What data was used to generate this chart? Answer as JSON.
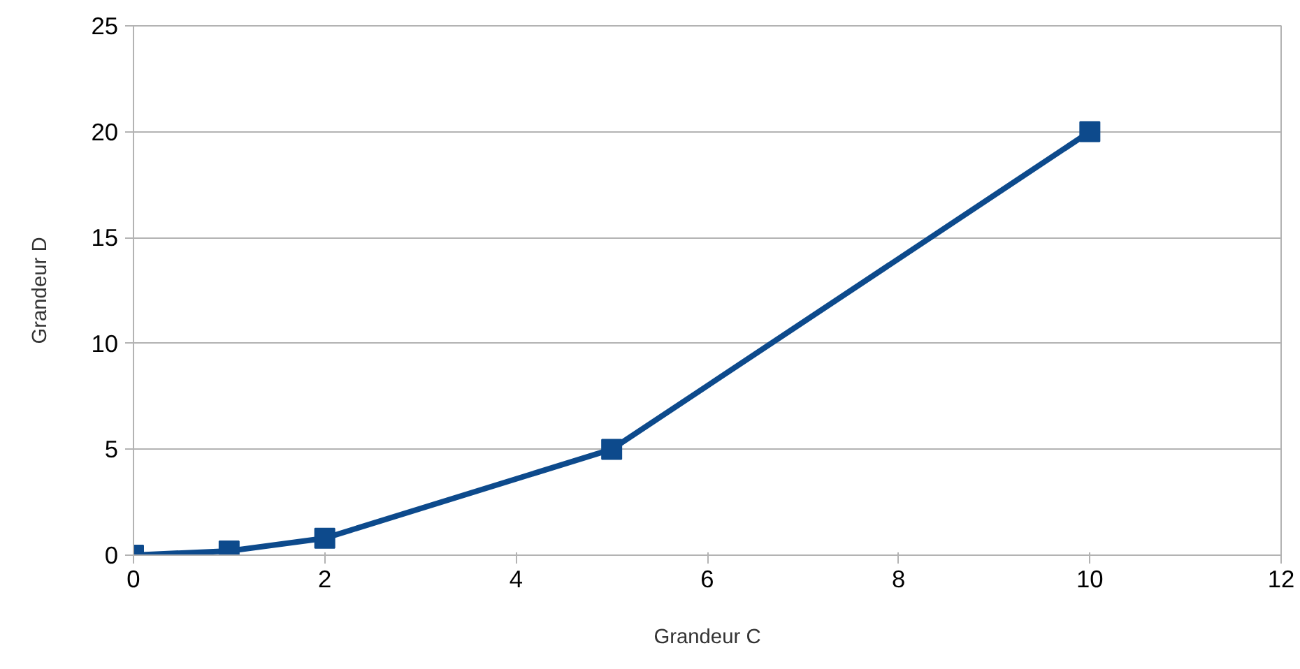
{
  "chart_data": {
    "type": "line",
    "xlabel": "Grandeur C",
    "ylabel": "Grandeur D",
    "x": [
      0,
      1,
      2,
      5,
      10
    ],
    "series": [
      {
        "color": "#0d4a8c",
        "values": [
          0,
          0.2,
          0.8,
          5,
          20
        ]
      }
    ],
    "xlim": [
      0,
      12
    ],
    "xticks": [
      0,
      2,
      4,
      6,
      8,
      10,
      12
    ],
    "ylim": [
      0,
      25
    ],
    "yticks": [
      0,
      5,
      10,
      15,
      20,
      25
    ],
    "grid": "y",
    "marker": "square",
    "line_style": "solid"
  }
}
